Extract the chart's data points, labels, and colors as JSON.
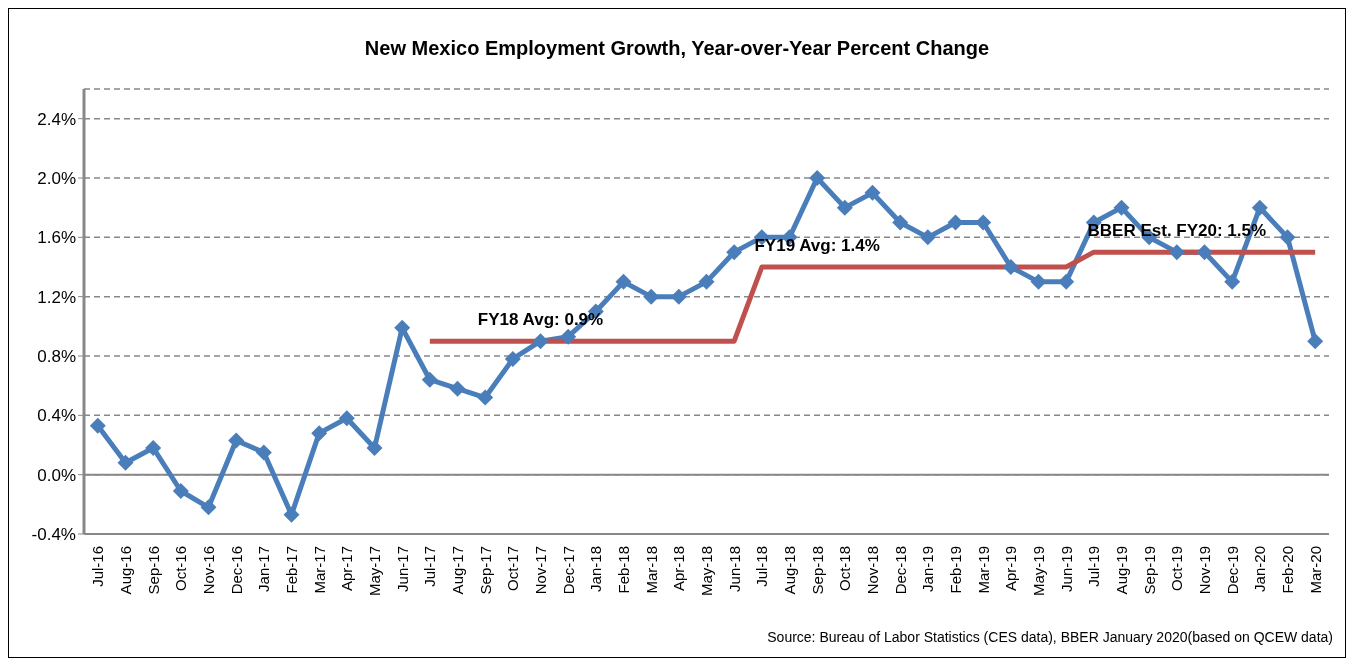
{
  "chart_data": {
    "type": "line",
    "title": "New Mexico Employment Growth, Year-over-Year Percent Change",
    "categories": [
      "Jul-16",
      "Aug-16",
      "Sep-16",
      "Oct-16",
      "Nov-16",
      "Dec-16",
      "Jan-17",
      "Feb-17",
      "Mar-17",
      "Apr-17",
      "May-17",
      "Jun-17",
      "Jul-17",
      "Aug-17",
      "Sep-17",
      "Oct-17",
      "Nov-17",
      "Dec-17",
      "Jan-18",
      "Feb-18",
      "Mar-18",
      "Apr-18",
      "May-18",
      "Jun-18",
      "Jul-18",
      "Aug-18",
      "Sep-18",
      "Oct-18",
      "Nov-18",
      "Dec-18",
      "Jan-19",
      "Feb-19",
      "Mar-19",
      "Apr-19",
      "May-19",
      "Jun-19",
      "Jul-19",
      "Aug-19",
      "Sep-19",
      "Oct-19",
      "Nov-19",
      "Dec-19",
      "Jan-20",
      "Feb-20",
      "Mar-20"
    ],
    "series": [
      {
        "color": "#4a7ebb",
        "marker": "diamond",
        "values": [
          0.33,
          0.08,
          0.18,
          -0.11,
          -0.22,
          0.23,
          0.15,
          -0.27,
          0.28,
          0.38,
          0.18,
          0.99,
          0.64,
          0.58,
          0.52,
          0.78,
          0.9,
          0.93,
          1.1,
          1.3,
          1.2,
          1.2,
          1.3,
          1.5,
          1.6,
          1.6,
          2.0,
          1.8,
          1.9,
          1.7,
          1.6,
          1.7,
          1.7,
          1.4,
          1.3,
          1.3,
          1.7,
          1.8,
          1.6,
          1.5,
          1.5,
          1.3,
          1.8,
          1.6,
          0.9
        ]
      },
      {
        "color": "#c0504d",
        "marker": "none",
        "values": [
          null,
          null,
          null,
          null,
          null,
          null,
          null,
          null,
          null,
          null,
          null,
          null,
          0.9,
          0.9,
          0.9,
          0.9,
          0.9,
          0.9,
          0.9,
          0.9,
          0.9,
          0.9,
          0.9,
          0.9,
          1.4,
          1.4,
          1.4,
          1.4,
          1.4,
          1.4,
          1.4,
          1.4,
          1.4,
          1.4,
          1.4,
          1.4,
          1.5,
          1.5,
          1.5,
          1.5,
          1.5,
          1.5,
          1.5,
          1.5,
          1.5
        ]
      }
    ],
    "ylim": [
      -0.4,
      2.6
    ],
    "yticks": [
      {
        "value": -0.4,
        "label": "-0.4%"
      },
      {
        "value": 0,
        "label": "0.0%"
      },
      {
        "value": 0.4,
        "label": "0.4%"
      },
      {
        "value": 0.8,
        "label": "0.8%"
      },
      {
        "value": 1.2,
        "label": "1.2%"
      },
      {
        "value": 1.6,
        "label": "1.6%"
      },
      {
        "value": 2.0,
        "label": "2.0%"
      },
      {
        "value": 2.4,
        "label": "2.4%"
      }
    ],
    "grid": "y",
    "line_style": "solid",
    "annotations": [
      {
        "text": "FY18 Avg: 0.9%",
        "x": "Nov-17",
        "y": 0.9
      },
      {
        "text": "FY19 Avg: 1.4%",
        "x": "Sep-18",
        "y": 1.4
      },
      {
        "text": "BBER Est. FY20: 1.5%",
        "x": "Oct-19",
        "y": 1.5
      },
      "Source: Bureau of Labor Statistics (CES data), BBER January 2020(based on QCEW data)"
    ]
  }
}
